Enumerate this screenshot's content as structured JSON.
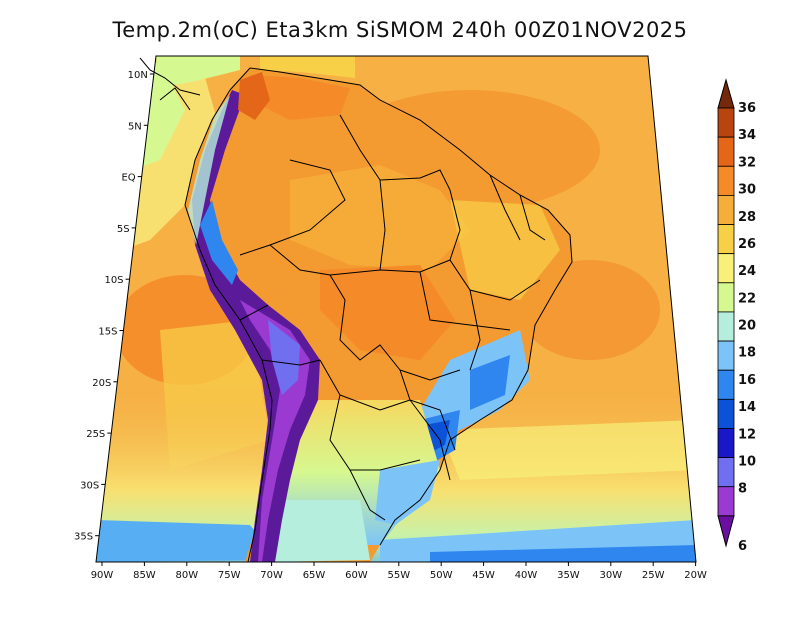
{
  "title": "Temp.2m(oC) Eta3km SiSMOM 240h 00Z01NOV2025",
  "lon_ticks": [
    "90W",
    "85W",
    "80W",
    "75W",
    "70W",
    "65W",
    "60W",
    "55W",
    "50W",
    "45W",
    "40W",
    "35W",
    "30W",
    "25W",
    "20W"
  ],
  "lat_ticks": [
    "10N",
    "5N",
    "EQ",
    "5S",
    "10S",
    "15S",
    "20S",
    "25S",
    "30S",
    "35S"
  ],
  "colorbar": {
    "labels": [
      "6",
      "8",
      "10",
      "12",
      "14",
      "16",
      "18",
      "20",
      "22",
      "24",
      "26",
      "28",
      "30",
      "32",
      "34",
      "36"
    ],
    "colors": [
      "#6a0fa0",
      "#9a3ad0",
      "#6f6ff0",
      "#1818c8",
      "#0b52d8",
      "#2f86ee",
      "#7cc4f8",
      "#b6eede",
      "#d6f890",
      "#f8f07a",
      "#f8d048",
      "#f6ae3a",
      "#f48a28",
      "#e46618",
      "#b84410",
      "#742a0a"
    ]
  },
  "colors": {
    "ocean": "#f6b044",
    "land": "#f39a30",
    "andes": "#5b1a9a",
    "border": "#000000"
  }
}
